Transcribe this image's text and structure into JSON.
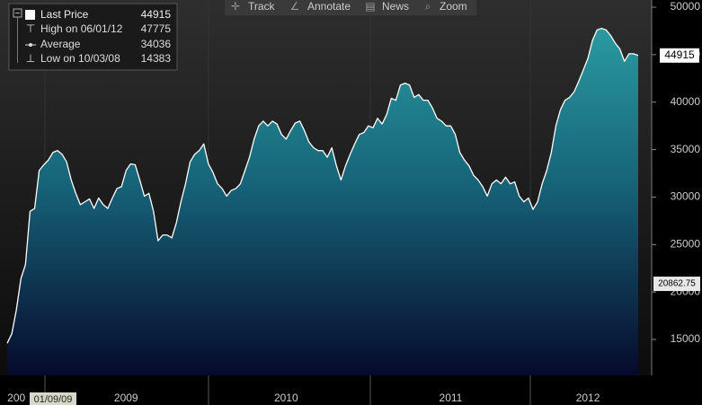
{
  "chart_data": {
    "type": "area",
    "toolbar": [
      "Track",
      "Annotate",
      "News",
      "Zoom"
    ],
    "legend": [
      {
        "label": "Last Price",
        "value": 44915
      },
      {
        "label": "High on 06/01/12",
        "value": 47775
      },
      {
        "label": "Average",
        "value": 34036
      },
      {
        "label": "Low on 10/03/08",
        "value": 14383
      }
    ],
    "cursor_date": "01/09/09",
    "tags": [
      {
        "value": 44915
      },
      {
        "value": 20862.75
      }
    ],
    "color": "#ffffff",
    "ylim": [
      11220,
      50760
    ],
    "yticks": [
      15000,
      20000,
      25000,
      30000,
      35000,
      40000,
      45000,
      50000
    ],
    "categories": [
      null,
      null,
      "200",
      null,
      null,
      null,
      null,
      null,
      null,
      null,
      null,
      null,
      null,
      null,
      null,
      null,
      null,
      null,
      null,
      null,
      null,
      null,
      null,
      null,
      null,
      null,
      "2009",
      null,
      null,
      null,
      null,
      null,
      null,
      null,
      null,
      null,
      null,
      null,
      null,
      null,
      null,
      null,
      null,
      null,
      null,
      null,
      null,
      null,
      null,
      null,
      null,
      null,
      null,
      null,
      null,
      null,
      null,
      null,
      null,
      null,
      null,
      "2010",
      null,
      null,
      null,
      null,
      null,
      null,
      null,
      null,
      null,
      null,
      null,
      null,
      null,
      null,
      null,
      null,
      null,
      null,
      null,
      null,
      null,
      null,
      null,
      null,
      null,
      null,
      null,
      null,
      null,
      null,
      null,
      null,
      null,
      null,
      null,
      "2011",
      null,
      null,
      null,
      null,
      null,
      null,
      null,
      null,
      null,
      null,
      null,
      null,
      null,
      null,
      null,
      null,
      null,
      null,
      null,
      null,
      null,
      null,
      null,
      null,
      null,
      null,
      null,
      null,
      null,
      "2012",
      null,
      null,
      null,
      null,
      null,
      null,
      null,
      null,
      null,
      null,
      null
    ],
    "values": [
      14600,
      15600,
      18100,
      21400,
      22900,
      28500,
      28800,
      32800,
      33400,
      33900,
      34700,
      34900,
      34500,
      33700,
      31800,
      30400,
      29200,
      29500,
      29800,
      28800,
      29900,
      29200,
      28800,
      29900,
      30900,
      31100,
      32800,
      33500,
      33400,
      31800,
      30100,
      30400,
      28500,
      25400,
      26000,
      26000,
      25700,
      27300,
      29500,
      31400,
      33700,
      34500,
      34900,
      35600,
      33500,
      32600,
      31400,
      30900,
      30100,
      30700,
      30900,
      31400,
      32800,
      34200,
      36100,
      37500,
      38000,
      37500,
      38000,
      37700,
      36600,
      36100,
      37000,
      37800,
      38000,
      37000,
      35800,
      35200,
      34900,
      34900,
      34200,
      35200,
      33300,
      31800,
      33300,
      34500,
      35600,
      36600,
      36800,
      37500,
      37300,
      38300,
      37700,
      38700,
      40400,
      40200,
      41800,
      42000,
      41800,
      40500,
      40800,
      40200,
      40200,
      39400,
      38300,
      38000,
      37500,
      37500,
      36600,
      34700,
      33900,
      33300,
      32300,
      31800,
      31100,
      30100,
      31400,
      31800,
      31400,
      32100,
      31400,
      31600,
      30100,
      29500,
      29900,
      28700,
      29500,
      31400,
      32800,
      34700,
      37500,
      39200,
      40200,
      40500,
      41100,
      42200,
      43400,
      44600,
      46500,
      47600,
      47775,
      47600,
      47000,
      46200,
      45600,
      44300,
      45100,
      45100,
      44915
    ]
  }
}
